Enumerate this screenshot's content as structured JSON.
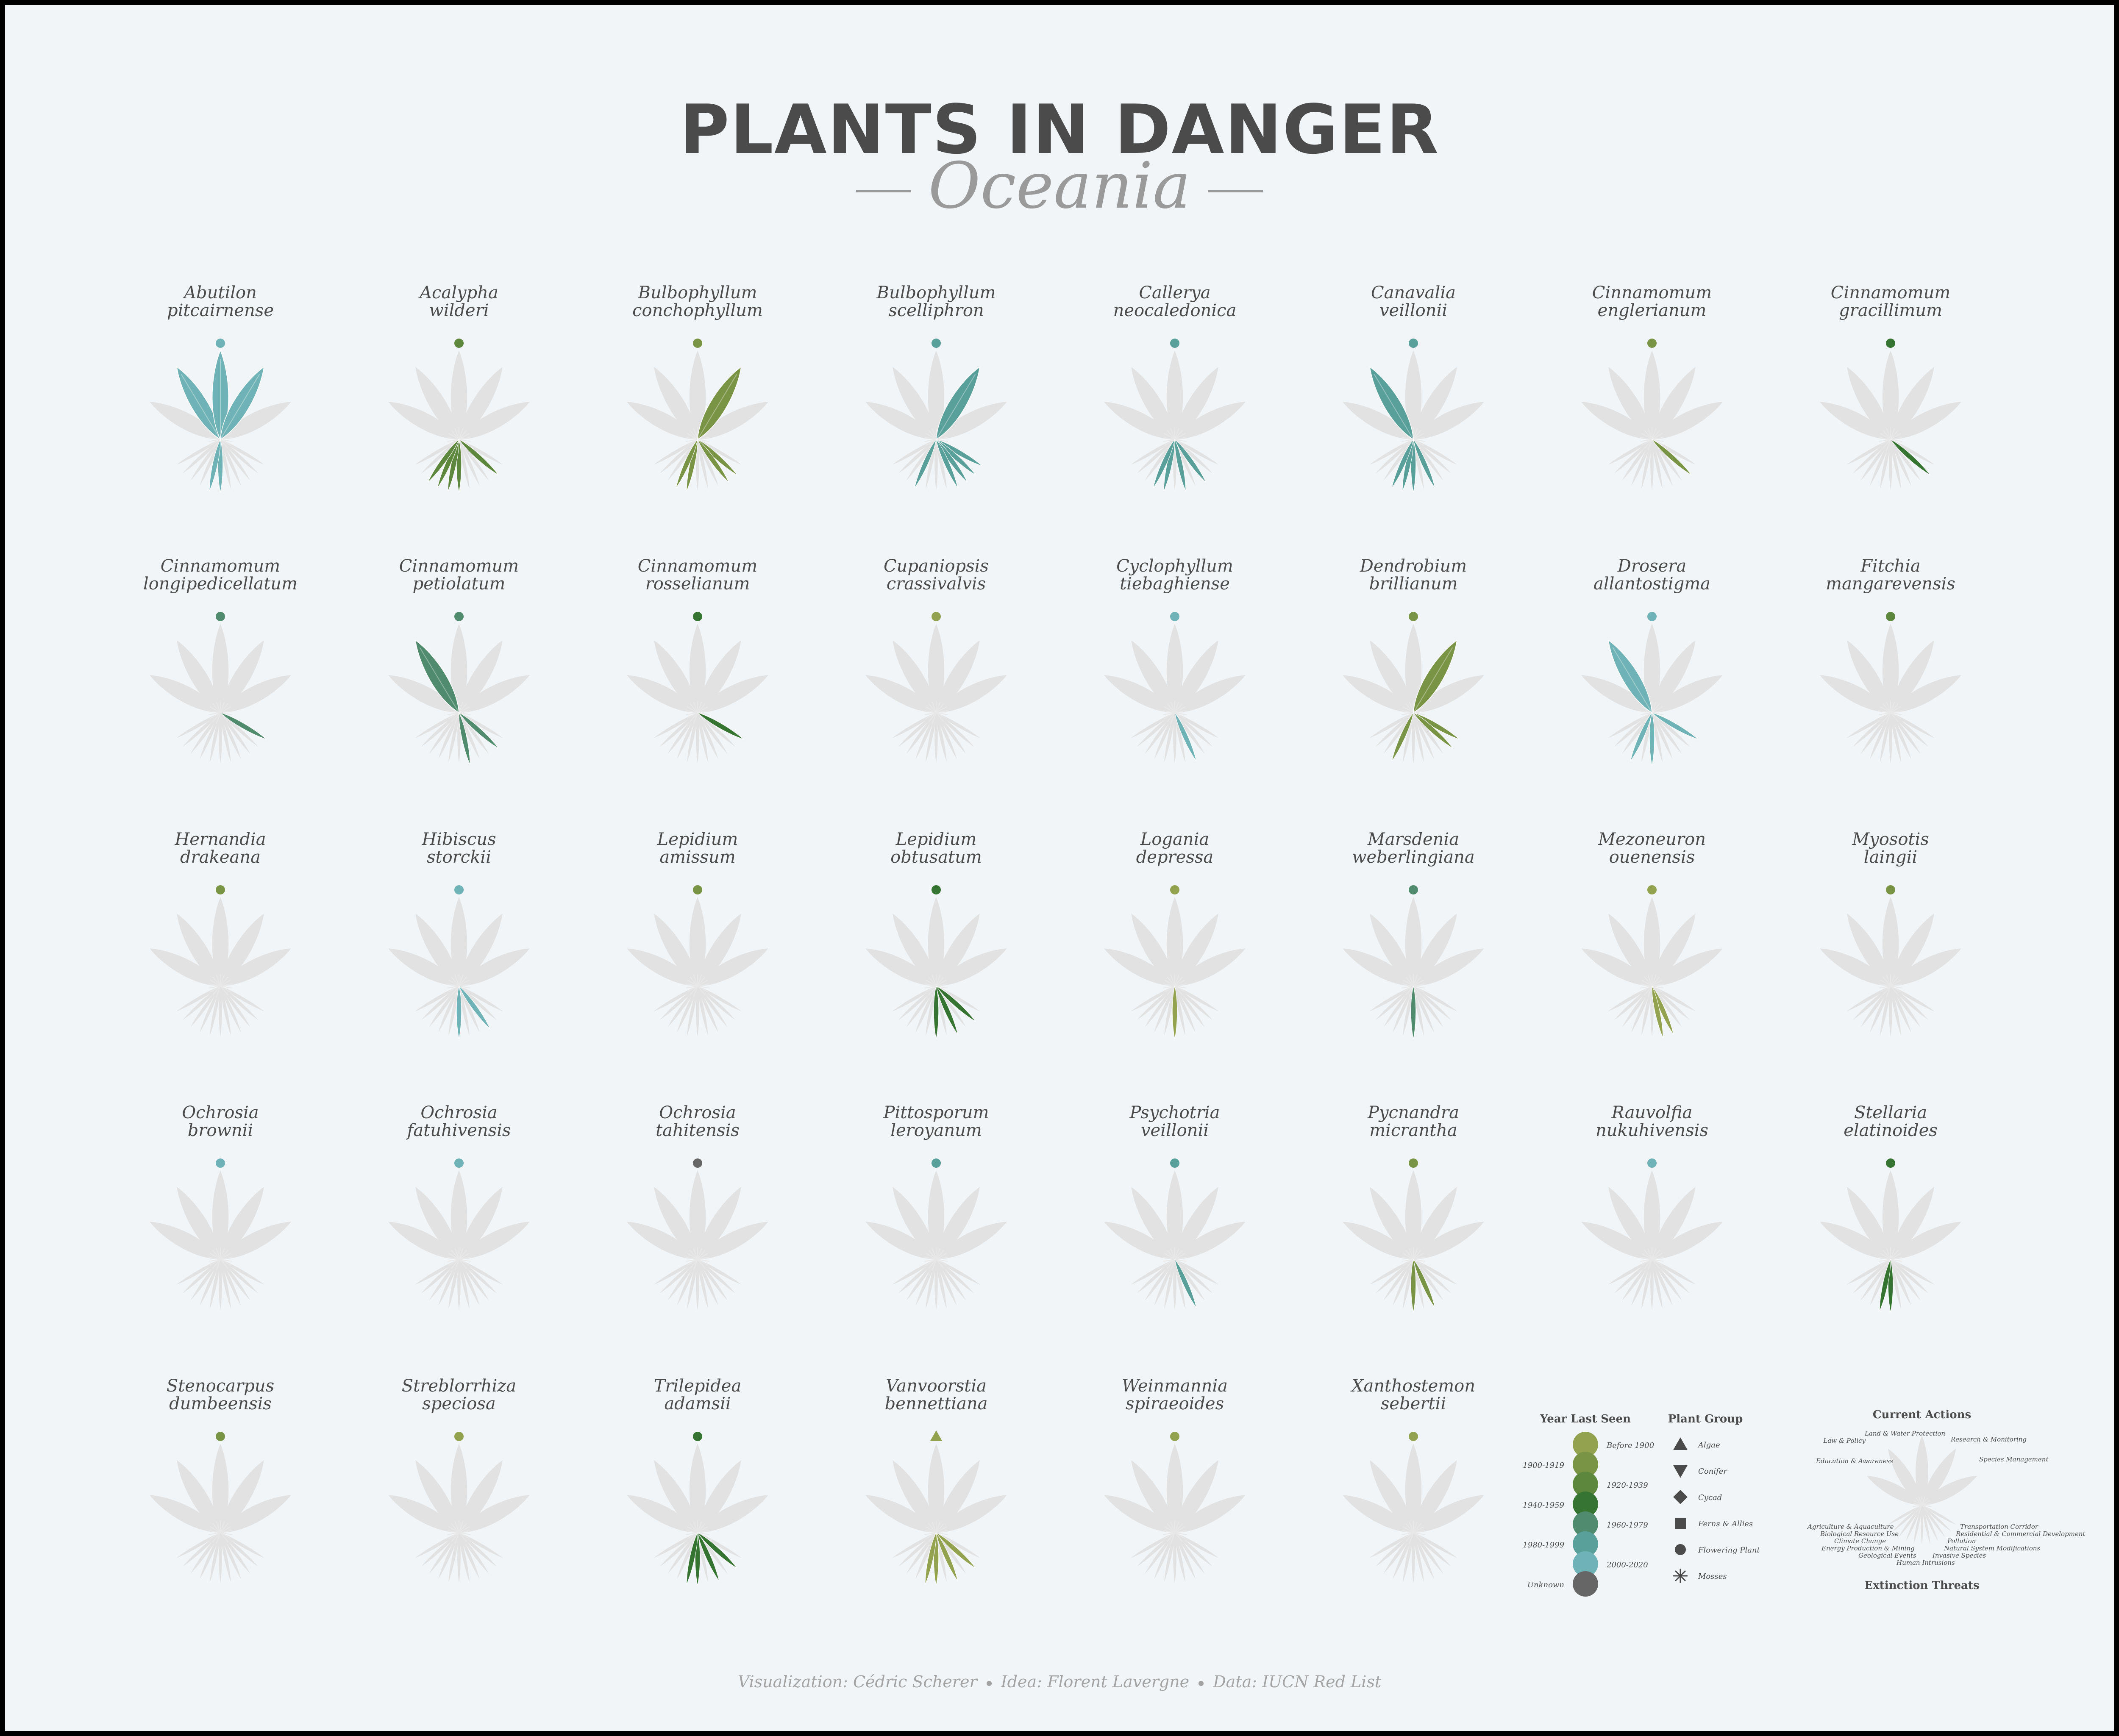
{
  "title": "PLANTS IN DANGER",
  "subtitle": "Oceania",
  "footer": {
    "viz": "Visualization: Cédric Scherer",
    "idea": "Idea: Florent Lavergne",
    "data": "Data: IUCN Red List"
  },
  "colors": {
    "Before 1900": "#93a24f",
    "1900-1919": "#7a9446",
    "1920-1939": "#5d873c",
    "1940-1959": "#357431",
    "1960-1979": "#4f8b6c",
    "1980-1999": "#599f9a",
    "2000-2020": "#6fb3b6",
    "Unknown": "#666666",
    "ghost": "#e2e2e2",
    "text": "#4b4b4b"
  },
  "chart_data": {
    "type": "radial-glyph",
    "actions_labels": [
      "Education & Awareness",
      "Law & Policy",
      "Land & Water Protection",
      "Research & Monitoring",
      "Species Management"
    ],
    "threats_labels": [
      "Agriculture & Aquaculture",
      "Biological Resource Use",
      "Climate Change",
      "Energy Production & Mining",
      "Geological Events",
      "Human Intrusions",
      "Invasive Species",
      "Natural System Modifications",
      "Pollution",
      "Residential & Commercial Development",
      "Transportation Corridor"
    ],
    "plants": [
      {
        "name1": "Abutilon",
        "name2": "pitcairnense",
        "year": "2000-2020",
        "group": "Flowering Plant",
        "actions": [
          2,
          3,
          4
        ],
        "threats": [
          6,
          7
        ]
      },
      {
        "name1": "Acalypha",
        "name2": "wilderi",
        "year": "1920-1939",
        "group": "Flowering Plant",
        "actions": [],
        "threats": [
          2,
          6,
          7,
          8,
          9
        ]
      },
      {
        "name1": "Bulbophyllum",
        "name2": "conchophyllum",
        "year": "1900-1919",
        "group": "Flowering Plant",
        "actions": [
          4
        ],
        "threats": [
          2,
          3,
          7,
          8
        ]
      },
      {
        "name1": "Bulbophyllum",
        "name2": "scelliphron",
        "year": "1980-1999",
        "group": "Flowering Plant",
        "actions": [
          4
        ],
        "threats": [
          1,
          2,
          3,
          4,
          8
        ]
      },
      {
        "name1": "Callerya",
        "name2": "neocaledonica",
        "year": "1980-1999",
        "group": "Flowering Plant",
        "actions": [],
        "threats": [
          3,
          5,
          7,
          8
        ]
      },
      {
        "name1": "Canavalia",
        "name2": "veillonii",
        "year": "1980-1999",
        "group": "Flowering Plant",
        "actions": [
          2
        ],
        "threats": [
          4,
          6,
          7,
          8
        ]
      },
      {
        "name1": "Cinnamomum",
        "name2": "englerianum",
        "year": "1900-1919",
        "group": "Flowering Plant",
        "actions": [],
        "threats": [
          2
        ]
      },
      {
        "name1": "Cinnamomum",
        "name2": "gracillimum",
        "year": "1940-1959",
        "group": "Flowering Plant",
        "actions": [],
        "threats": [
          2
        ]
      },
      {
        "name1": "Cinnamomum",
        "name2": "longipedicellatum",
        "year": "1960-1979",
        "group": "Flowering Plant",
        "actions": [],
        "threats": [
          1
        ]
      },
      {
        "name1": "Cinnamomum",
        "name2": "petiolatum",
        "year": "1960-1979",
        "group": "Flowering Plant",
        "actions": [
          2
        ],
        "threats": [
          2,
          5
        ]
      },
      {
        "name1": "Cinnamomum",
        "name2": "rosselianum",
        "year": "1940-1959",
        "group": "Flowering Plant",
        "actions": [],
        "threats": [
          1
        ]
      },
      {
        "name1": "Cupaniopsis",
        "name2": "crassivalvis",
        "year": "Before 1900",
        "group": "Flowering Plant",
        "actions": [],
        "threats": []
      },
      {
        "name1": "Cyclophyllum",
        "name2": "tiebaghiense",
        "year": "2000-2020",
        "group": "Flowering Plant",
        "actions": [],
        "threats": [
          4
        ]
      },
      {
        "name1": "Dendrobium",
        "name2": "brillianum",
        "year": "1900-1919",
        "group": "Flowering Plant",
        "actions": [
          4
        ],
        "threats": [
          1,
          2,
          8
        ]
      },
      {
        "name1": "Drosera",
        "name2": "allantostigma",
        "year": "2000-2020",
        "group": "Flowering Plant",
        "actions": [
          2
        ],
        "threats": [
          1,
          6,
          8
        ]
      },
      {
        "name1": "Fitchia",
        "name2": "mangarevensis",
        "year": "1920-1939",
        "group": "Flowering Plant",
        "actions": [],
        "threats": []
      },
      {
        "name1": "Hernandia",
        "name2": "drakeana",
        "year": "1900-1919",
        "group": "Flowering Plant",
        "actions": [],
        "threats": []
      },
      {
        "name1": "Hibiscus",
        "name2": "storckii",
        "year": "2000-2020",
        "group": "Flowering Plant",
        "actions": [],
        "threats": [
          3,
          6
        ]
      },
      {
        "name1": "Lepidium",
        "name2": "amissum",
        "year": "1900-1919",
        "group": "Flowering Plant",
        "actions": [],
        "threats": []
      },
      {
        "name1": "Lepidium",
        "name2": "obtusatum",
        "year": "1940-1959",
        "group": "Flowering Plant",
        "actions": [],
        "threats": [
          2,
          4,
          6
        ]
      },
      {
        "name1": "Logania",
        "name2": "depressa",
        "year": "Before 1900",
        "group": "Flowering Plant",
        "actions": [],
        "threats": [
          6
        ]
      },
      {
        "name1": "Marsdenia",
        "name2": "weberlingiana",
        "year": "1960-1979",
        "group": "Flowering Plant",
        "actions": [],
        "threats": [
          6
        ]
      },
      {
        "name1": "Mezoneuron",
        "name2": "ouenensis",
        "year": "Before 1900",
        "group": "Flowering Plant",
        "actions": [],
        "threats": [
          4,
          5
        ]
      },
      {
        "name1": "Myosotis",
        "name2": "laingii",
        "year": "1900-1919",
        "group": "Flowering Plant",
        "actions": [],
        "threats": []
      },
      {
        "name1": "Ochrosia",
        "name2": "brownii",
        "year": "2000-2020",
        "group": "Flowering Plant",
        "actions": [],
        "threats": []
      },
      {
        "name1": "Ochrosia",
        "name2": "fatuhivensis",
        "year": "2000-2020",
        "group": "Flowering Plant",
        "actions": [],
        "threats": []
      },
      {
        "name1": "Ochrosia",
        "name2": "tahitensis",
        "year": "Unknown",
        "group": "Flowering Plant",
        "actions": [],
        "threats": []
      },
      {
        "name1": "Pittosporum",
        "name2": "leroyanum",
        "year": "1980-1999",
        "group": "Flowering Plant",
        "actions": [],
        "threats": []
      },
      {
        "name1": "Psychotria",
        "name2": "veillonii",
        "year": "1980-1999",
        "group": "Flowering Plant",
        "actions": [],
        "threats": [
          4
        ]
      },
      {
        "name1": "Pycnandra",
        "name2": "micrantha",
        "year": "1900-1919",
        "group": "Flowering Plant",
        "actions": [],
        "threats": [
          4,
          6
        ]
      },
      {
        "name1": "Rauvolfia",
        "name2": "nukuhivensis",
        "year": "2000-2020",
        "group": "Flowering Plant",
        "actions": [],
        "threats": []
      },
      {
        "name1": "Stellaria",
        "name2": "elatinoides",
        "year": "1940-1959",
        "group": "Flowering Plant",
        "actions": [],
        "threats": [
          6,
          7
        ]
      },
      {
        "name1": "Stenocarpus",
        "name2": "dumbeensis",
        "year": "1900-1919",
        "group": "Flowering Plant",
        "actions": [],
        "threats": []
      },
      {
        "name1": "Streblorrhiza",
        "name2": "speciosa",
        "year": "Before 1900",
        "group": "Flowering Plant",
        "actions": [],
        "threats": []
      },
      {
        "name1": "Trilepidea",
        "name2": "adamsii",
        "year": "1940-1959",
        "group": "Flowering Plant",
        "actions": [],
        "threats": [
          2,
          4,
          6,
          7
        ]
      },
      {
        "name1": "Vanvoorstia",
        "name2": "bennettiana",
        "year": "Before 1900",
        "group": "Algae",
        "actions": [],
        "threats": [
          2,
          4,
          6,
          7
        ]
      },
      {
        "name1": "Weinmannia",
        "name2": "spiraeoides",
        "year": "Before 1900",
        "group": "Flowering Plant",
        "actions": [],
        "threats": []
      },
      {
        "name1": "Xanthostemon",
        "name2": "sebertii",
        "year": "Before 1900",
        "group": "Flowering Plant",
        "actions": [],
        "threats": []
      }
    ]
  },
  "legend": {
    "year_title": "Year Last Seen",
    "years": [
      "Before 1900",
      "1900-1919",
      "1920-1939",
      "1940-1959",
      "1960-1979",
      "1980-1999",
      "2000-2020",
      "Unknown"
    ],
    "group_title": "Plant Group",
    "groups": [
      "Algae",
      "Conifer",
      "Cycad",
      "Ferns & Allies",
      "Flowering Plant",
      "Mosses"
    ],
    "actions_title": "Current Actions",
    "threats_title": "Extinction Threats"
  }
}
